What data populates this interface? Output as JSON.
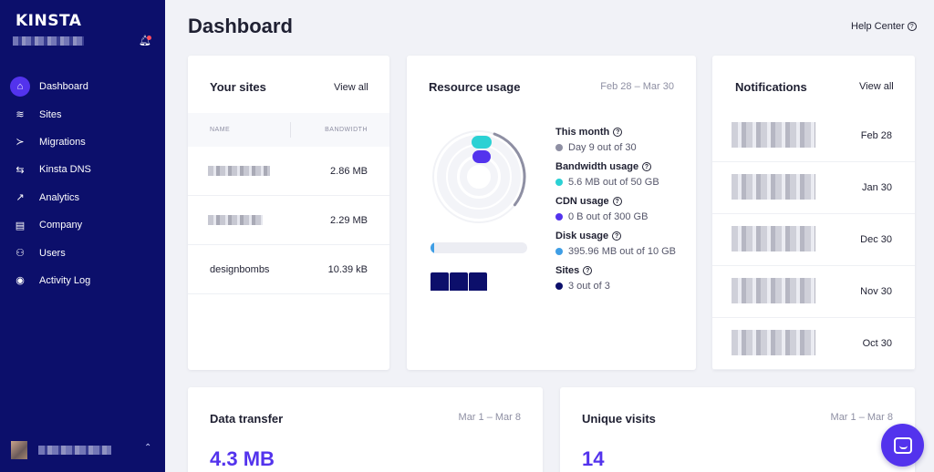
{
  "sidebar": {
    "logo": "KINSTA",
    "nav": [
      {
        "label": "Dashboard",
        "icon": "home-icon",
        "glyph": "⌂",
        "active": true
      },
      {
        "label": "Sites",
        "icon": "layers-icon",
        "glyph": "≋"
      },
      {
        "label": "Migrations",
        "icon": "migrate-icon",
        "glyph": "≻"
      },
      {
        "label": "Kinsta DNS",
        "icon": "dns-icon",
        "glyph": "⇆"
      },
      {
        "label": "Analytics",
        "icon": "trend-icon",
        "glyph": "↗"
      },
      {
        "label": "Company",
        "icon": "building-icon",
        "glyph": "▤"
      },
      {
        "label": "Users",
        "icon": "add-user-icon",
        "glyph": "⚇"
      },
      {
        "label": "Activity Log",
        "icon": "eye-icon",
        "glyph": "◉"
      }
    ]
  },
  "header": {
    "title": "Dashboard",
    "help": "Help Center"
  },
  "sites_card": {
    "title": "Your sites",
    "view_all": "View all",
    "col_name": "NAME",
    "col_bandwidth": "BANDWIDTH",
    "rows": [
      {
        "name": "",
        "bandwidth": "2.86 MB"
      },
      {
        "name": "",
        "bandwidth": "2.29 MB"
      },
      {
        "name": "designbombs",
        "bandwidth": "10.39 kB"
      }
    ]
  },
  "resource_card": {
    "title": "Resource usage",
    "date_range": "Feb 28 – Mar 30",
    "items": [
      {
        "title": "This month",
        "value": "Day 9 out of 30",
        "color": "#8e8fa3"
      },
      {
        "title": "Bandwidth usage",
        "value": "5.6 MB out of 50 GB",
        "color": "#2bd1d4"
      },
      {
        "title": "CDN usage",
        "value": "0 B out of 300 GB",
        "color": "#5333ed"
      },
      {
        "title": "Disk usage",
        "value": "395.96 MB out of 10 GB",
        "color": "#3f9ee5"
      },
      {
        "title": "Sites",
        "value": "3 out of 3",
        "color": "#0c0f6b"
      }
    ],
    "month_fraction": 0.3,
    "disk_fraction": 0.04
  },
  "notifications_card": {
    "title": "Notifications",
    "view_all": "View all",
    "dates": [
      "Feb 28",
      "Jan 30",
      "Dec 30",
      "Nov 30",
      "Oct 30"
    ]
  },
  "data_transfer": {
    "title": "Data transfer",
    "date_range": "Mar 1 – Mar 8",
    "value": "4.3 MB"
  },
  "unique_visits": {
    "title": "Unique visits",
    "date_range": "Mar 1 – Mar 8",
    "value": "14"
  },
  "colors": {
    "sidebar": "#0c0f6b",
    "accent": "#5333ed"
  }
}
